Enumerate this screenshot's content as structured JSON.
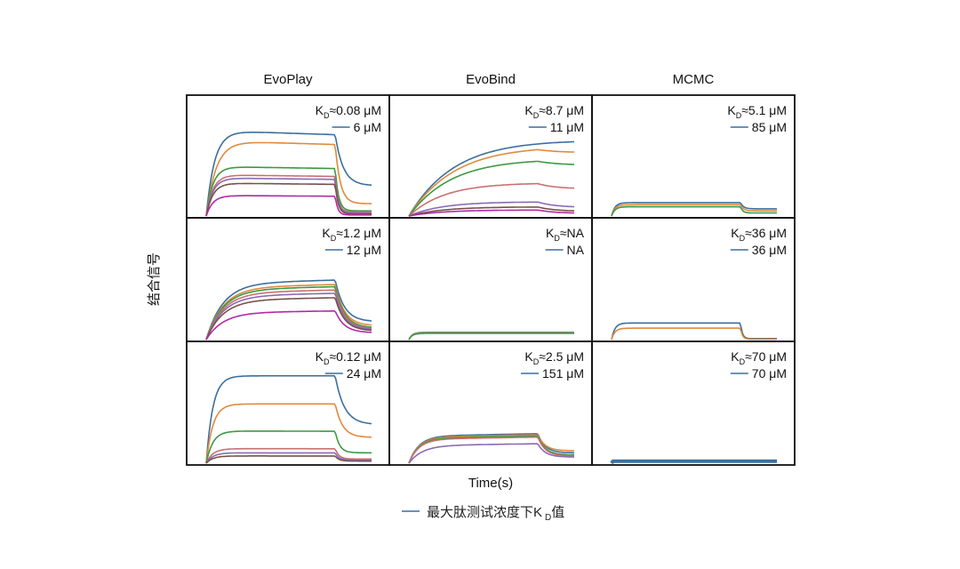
{
  "chart_data": {
    "type": "line",
    "y_label": "结合信号",
    "x_label": "Time(s)",
    "legend": "最大肽测试浓度下K D值",
    "legend_color": "#3b6f9e",
    "columns": [
      "EvoPlay",
      "EvoBind",
      "MCMC"
    ],
    "colors": [
      "#3b6f9e",
      "#e08a3c",
      "#3a9a42",
      "#c9706f",
      "#8a6ab5",
      "#7a5046",
      "#b02aa6"
    ],
    "panels": [
      {
        "col": 0,
        "row": 0,
        "kd": "≈0.08 μM",
        "conc": "6 μM",
        "series": [
          {
            "plateau": 0.83,
            "end": 0.3,
            "tau": 0.05,
            "drift": -0.05,
            "off": 0.22
          },
          {
            "plateau": 0.73,
            "end": 0.12,
            "tau": 0.06,
            "drift": -0.05,
            "off": 0.14
          },
          {
            "plateau": 0.48,
            "end": 0.05,
            "tau": 0.04,
            "drift": -0.04,
            "off": 0.09
          },
          {
            "plateau": 0.4,
            "end": 0.04,
            "tau": 0.04,
            "drift": -0.04,
            "off": 0.08
          },
          {
            "plateau": 0.37,
            "end": 0.03,
            "tau": 0.04,
            "drift": -0.04,
            "off": 0.08
          },
          {
            "plateau": 0.32,
            "end": 0.02,
            "tau": 0.04,
            "drift": -0.04,
            "off": 0.08
          },
          {
            "plateau": 0.2,
            "end": 0.01,
            "tau": 0.04,
            "drift": -0.04,
            "off": 0.07
          }
        ]
      },
      {
        "col": 1,
        "row": 0,
        "kd": "≈8.7 μM",
        "conc": "11 μM",
        "series": [
          {
            "plateau": 0.76,
            "end": 0.72,
            "tau": 0.28,
            "drift": -0.02,
            "off": 0.9
          },
          {
            "plateau": 0.7,
            "end": 0.62,
            "tau": 0.28,
            "drift": -0.02,
            "off": 0.6
          },
          {
            "plateau": 0.57,
            "end": 0.5,
            "tau": 0.26,
            "drift": -0.02,
            "off": 0.6
          },
          {
            "plateau": 0.33,
            "end": 0.27,
            "tau": 0.22,
            "drift": -0.02,
            "off": 0.5
          },
          {
            "plateau": 0.14,
            "end": 0.09,
            "tau": 0.2,
            "drift": -0.01,
            "off": 0.5
          },
          {
            "plateau": 0.09,
            "end": 0.05,
            "tau": 0.2,
            "drift": -0.01,
            "off": 0.5
          },
          {
            "plateau": 0.06,
            "end": 0.03,
            "tau": 0.2,
            "drift": -0.01,
            "off": 0.5
          }
        ]
      },
      {
        "col": 2,
        "row": 0,
        "kd": "≈5.1 μM",
        "conc": "85 μM",
        "series": [
          {
            "plateau": 0.13,
            "end": 0.07,
            "tau": 0.02,
            "drift": 0.0,
            "off": 0.08
          },
          {
            "plateau": 0.11,
            "end": 0.05,
            "tau": 0.02,
            "drift": 0.0,
            "off": 0.08
          },
          {
            "plateau": 0.09,
            "end": 0.03,
            "tau": 0.02,
            "drift": 0.0,
            "off": 0.06
          }
        ]
      },
      {
        "col": 0,
        "row": 1,
        "kd": "≈1.2 μM",
        "conc": "12 μM",
        "series": [
          {
            "plateau": 0.54,
            "end": 0.18,
            "tau": 0.1,
            "drift": 0.06,
            "off": 0.25
          },
          {
            "plateau": 0.5,
            "end": 0.14,
            "tau": 0.1,
            "drift": 0.06,
            "off": 0.25
          },
          {
            "plateau": 0.48,
            "end": 0.12,
            "tau": 0.1,
            "drift": 0.06,
            "off": 0.25
          },
          {
            "plateau": 0.45,
            "end": 0.11,
            "tau": 0.1,
            "drift": 0.06,
            "off": 0.25
          },
          {
            "plateau": 0.42,
            "end": 0.1,
            "tau": 0.1,
            "drift": 0.06,
            "off": 0.25
          },
          {
            "plateau": 0.38,
            "end": 0.09,
            "tau": 0.1,
            "drift": 0.06,
            "off": 0.25
          },
          {
            "plateau": 0.26,
            "end": 0.07,
            "tau": 0.1,
            "drift": 0.06,
            "off": 0.25
          }
        ]
      },
      {
        "col": 1,
        "row": 1,
        "kd": "≈NA",
        "conc": "NA",
        "series": [
          {
            "plateau": 0.07,
            "end": 0.07,
            "tau": 0.02,
            "drift": 0.0,
            "off": 0.5
          },
          {
            "plateau": 0.065,
            "end": 0.065,
            "tau": 0.02,
            "drift": 0.0,
            "off": 0.5
          },
          {
            "plateau": 0.06,
            "end": 0.06,
            "tau": 0.02,
            "drift": 0.0,
            "off": 0.5
          }
        ]
      },
      {
        "col": 2,
        "row": 1,
        "kd": "≈36 μM",
        "conc": "36 μM",
        "series": [
          {
            "plateau": 0.16,
            "end": 0.01,
            "tau": 0.02,
            "drift": 0.0,
            "off": 0.05
          },
          {
            "plateau": 0.11,
            "end": 0.005,
            "tau": 0.02,
            "drift": 0.0,
            "off": 0.05
          }
        ]
      },
      {
        "col": 0,
        "row": 2,
        "kd": "≈0.12 μM",
        "conc": "24 μM",
        "series": [
          {
            "plateau": 0.84,
            "end": 0.38,
            "tau": 0.04,
            "drift": 0.0,
            "off": 0.25
          },
          {
            "plateau": 0.57,
            "end": 0.25,
            "tau": 0.04,
            "drift": 0.0,
            "off": 0.2
          },
          {
            "plateau": 0.31,
            "end": 0.1,
            "tau": 0.04,
            "drift": -0.01,
            "off": 0.12
          },
          {
            "plateau": 0.14,
            "end": 0.04,
            "tau": 0.04,
            "drift": -0.01,
            "off": 0.1
          },
          {
            "plateau": 0.1,
            "end": 0.03,
            "tau": 0.04,
            "drift": -0.01,
            "off": 0.1
          },
          {
            "plateau": 0.07,
            "end": 0.02,
            "tau": 0.04,
            "drift": -0.01,
            "off": 0.1
          }
        ]
      },
      {
        "col": 1,
        "row": 2,
        "kd": "≈2.5 μM",
        "conc": "151 μM",
        "series": [
          {
            "plateau": 0.26,
            "end": 0.1,
            "tau": 0.06,
            "drift": 0.09,
            "off": 0.2
          },
          {
            "plateau": 0.25,
            "end": 0.12,
            "tau": 0.06,
            "drift": 0.09,
            "off": 0.2
          },
          {
            "plateau": 0.24,
            "end": 0.08,
            "tau": 0.06,
            "drift": 0.09,
            "off": 0.2
          },
          {
            "plateau": 0.23,
            "end": 0.07,
            "tau": 0.06,
            "drift": 0.09,
            "off": 0.2
          },
          {
            "plateau": 0.17,
            "end": 0.06,
            "tau": 0.08,
            "drift": 0.1,
            "off": 0.2
          }
        ]
      },
      {
        "col": 2,
        "row": 2,
        "kd": "≈70 μM",
        "conc": "70 μM",
        "series": [
          {
            "plateau": 0.02,
            "end": 0.02,
            "tau": 0.001,
            "drift": 0.0,
            "off": 0.5,
            "width": 4
          }
        ]
      }
    ]
  }
}
